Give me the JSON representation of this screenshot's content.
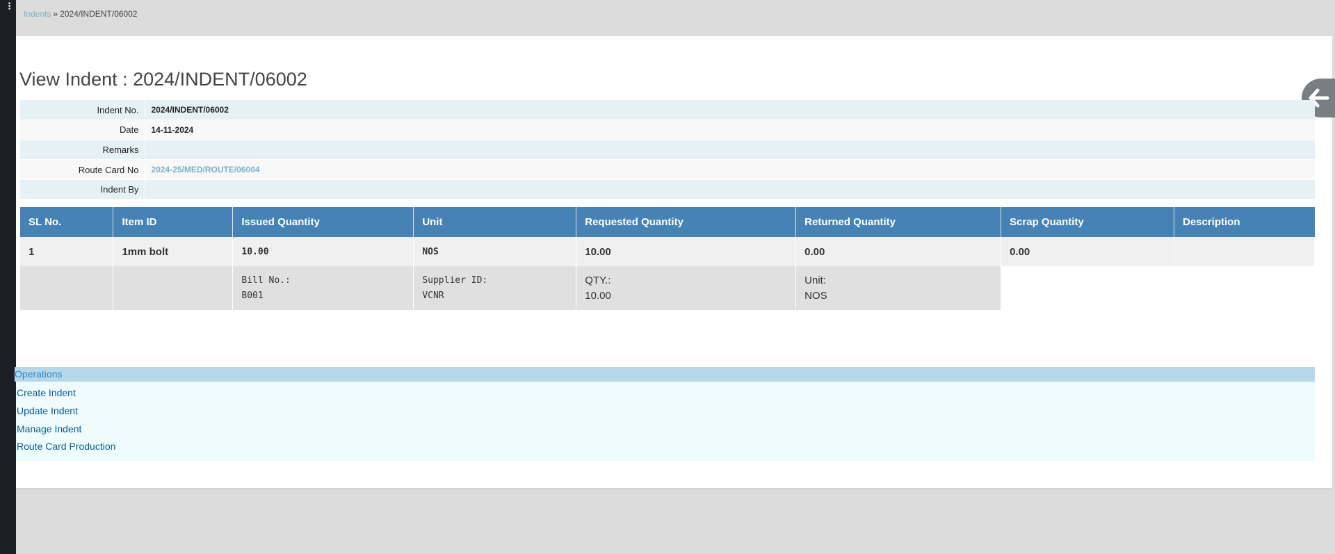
{
  "rail": {
    "menu_glyph": "⋮"
  },
  "breadcrumb": {
    "parent": "Indents",
    "separator": "»",
    "current": "2024/INDENT/06002"
  },
  "page": {
    "title": "View Indent : 2024/INDENT/06002"
  },
  "back_button": {
    "icon": "arrow-left-icon"
  },
  "detail": {
    "rows": [
      {
        "label": "Indent No.",
        "value": "2024/INDENT/06002"
      },
      {
        "label": "Date",
        "value": "14-11-2024"
      },
      {
        "label": "Remarks",
        "value": ""
      },
      {
        "label": "Route Card No",
        "value": "2024-25/MED/ROUTE/06004"
      },
      {
        "label": "Indent By",
        "value": ""
      }
    ]
  },
  "items": {
    "headers": [
      "SL No.",
      "Item ID",
      "Issued Quantity",
      "Unit",
      "Requested Quantity",
      "Returned Quantity",
      "Scrap Quantity",
      "Description"
    ],
    "row": {
      "sl": "1",
      "item_id": "1mm bolt",
      "issued": "10.00",
      "unit": "NOS",
      "requested": "10.00",
      "returned": "0.00",
      "scrap": "0.00",
      "description": ""
    },
    "sub": {
      "bill_label": "Bill No.:",
      "bill_value": "B001",
      "supplier_label": "Supplier ID:",
      "supplier_value": "VCNR",
      "qty_label": "QTY.:",
      "qty_value": "10.00",
      "unit_label": "Unit:",
      "unit_value": "NOS"
    }
  },
  "operations": {
    "title": "Operations",
    "links": [
      "Create Indent",
      "Update Indent",
      "Manage Indent",
      "Route Card Production"
    ]
  }
}
